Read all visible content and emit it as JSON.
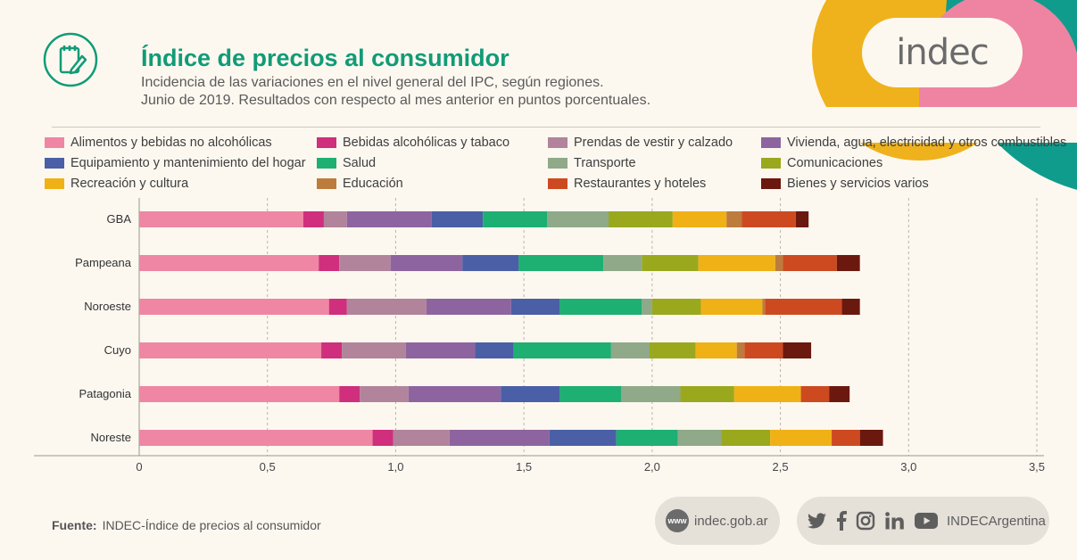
{
  "header": {
    "title": "Índice de precios al consumidor",
    "subtitle_line1": "Incidencia de las variaciones en el nivel general del IPC, según regiones.",
    "subtitle_line2": "Junio de 2019. Resultados con respecto al mes anterior en puntos porcentuales."
  },
  "brand": {
    "logo_text": "indec",
    "colors": {
      "teal": "#0f9c8c",
      "yellow": "#efb21d",
      "pink": "#ee84a2",
      "title_green": "#119b77"
    }
  },
  "chart_data": {
    "type": "bar",
    "orientation": "horizontal",
    "stacked": true,
    "categories": [
      "GBA",
      "Pampeana",
      "Noroeste",
      "Cuyo",
      "Patagonia",
      "Noreste"
    ],
    "xlim": [
      0,
      3.5
    ],
    "xticks": [
      0,
      0.5,
      1.0,
      1.5,
      2.0,
      2.5,
      3.0,
      3.5
    ],
    "xtick_labels": [
      "0",
      "0,5",
      "1,0",
      "1,5",
      "2,0",
      "2,5",
      "3,0",
      "3,5"
    ],
    "grid": "vertical dashed",
    "legend_position": "top",
    "series": [
      {
        "name": "Alimentos y bebidas no alcohólicas",
        "color": "#ef86a4",
        "values": [
          0.64,
          0.7,
          0.74,
          0.71,
          0.78,
          0.91
        ]
      },
      {
        "name": "Bebidas alcohólicas y tabaco",
        "color": "#cf2f7d",
        "values": [
          0.08,
          0.08,
          0.07,
          0.08,
          0.08,
          0.08
        ]
      },
      {
        "name": "Prendas de vestir y calzado",
        "color": "#b1849b",
        "values": [
          0.09,
          0.2,
          0.31,
          0.25,
          0.19,
          0.22
        ]
      },
      {
        "name": "Vivienda, agua, electricidad y otros combustibles",
        "color": "#8e64a0",
        "values": [
          0.33,
          0.28,
          0.33,
          0.27,
          0.36,
          0.39
        ]
      },
      {
        "name": "Equipamiento y mantenimiento del hogar",
        "color": "#4a5fa5",
        "values": [
          0.2,
          0.22,
          0.19,
          0.15,
          0.23,
          0.26
        ]
      },
      {
        "name": "Salud",
        "color": "#1eaf72",
        "values": [
          0.25,
          0.33,
          0.32,
          0.38,
          0.24,
          0.24
        ]
      },
      {
        "name": "Transporte",
        "color": "#8fa989",
        "values": [
          0.24,
          0.15,
          0.04,
          0.15,
          0.23,
          0.17
        ]
      },
      {
        "name": "Comunicaciones",
        "color": "#9aa81e",
        "values": [
          0.25,
          0.22,
          0.19,
          0.18,
          0.21,
          0.19
        ]
      },
      {
        "name": "Recreación y cultura",
        "color": "#f0b116",
        "values": [
          0.21,
          0.3,
          0.24,
          0.16,
          0.26,
          0.24
        ]
      },
      {
        "name": "Educación",
        "color": "#bd7c3c",
        "values": [
          0.06,
          0.03,
          0.01,
          0.03,
          0.0,
          0.0
        ]
      },
      {
        "name": "Restaurantes y hoteles",
        "color": "#cd4a21",
        "values": [
          0.21,
          0.21,
          0.3,
          0.15,
          0.11,
          0.11
        ]
      },
      {
        "name": "Bienes y servicios varios",
        "color": "#6b180f",
        "values": [
          0.05,
          0.09,
          0.07,
          0.11,
          0.08,
          0.09
        ]
      }
    ]
  },
  "footer": {
    "source_label": "Fuente:",
    "source_text": "INDEC-Índice de precios al consumidor",
    "www_badge": "www",
    "website": "indec.gob.ar",
    "social_handle": "INDECArgentina",
    "social_icons": [
      "twitter-icon",
      "facebook-icon",
      "instagram-icon",
      "linkedin-icon",
      "youtube-icon"
    ]
  }
}
